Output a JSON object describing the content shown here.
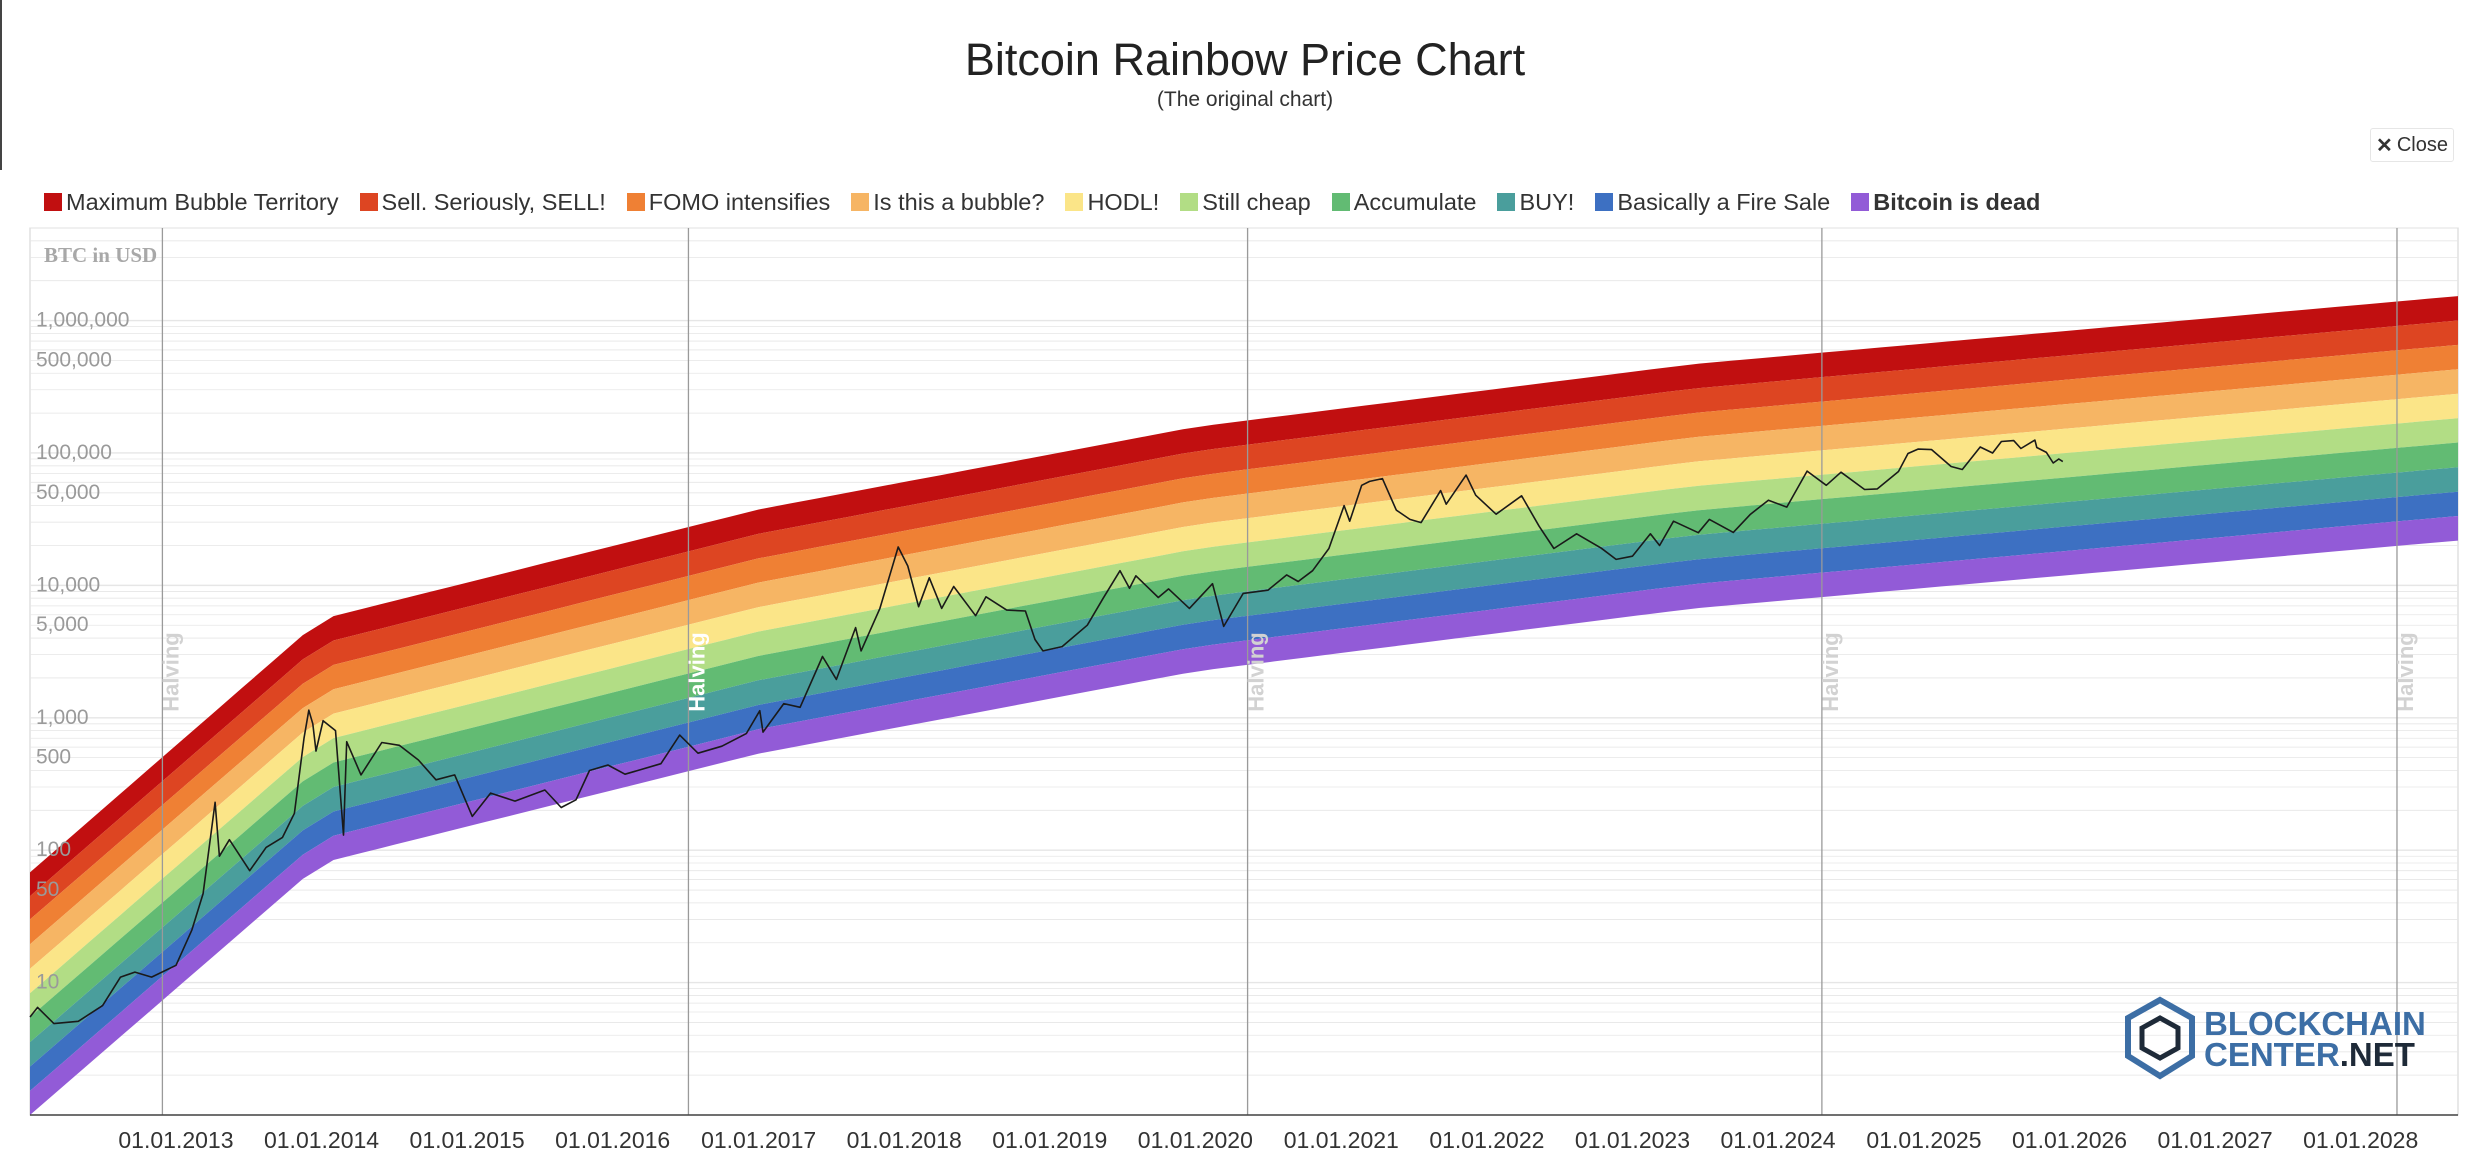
{
  "header": {
    "title": "Bitcoin Rainbow Price Chart",
    "subtitle": "(The original chart)",
    "close_label": "Close",
    "close_icon": "close-icon"
  },
  "colors": {
    "price_line": "#1a1a1a",
    "grid": "#e6e6e6",
    "halving_line": "#9a9a9a",
    "halving_label": "#d2d2d2",
    "axis_label": "#9a9a9a",
    "logo_blue": "#3c6ea5",
    "logo_dark": "#1e2a38"
  },
  "legend": [
    {
      "label": "Maximum Bubble Territory",
      "color": "#c10f10",
      "bold": false
    },
    {
      "label": "Sell. Seriously, SELL!",
      "color": "#dd4522",
      "bold": false
    },
    {
      "label": "FOMO intensifies",
      "color": "#ef8034",
      "bold": false
    },
    {
      "label": "Is this a bubble?",
      "color": "#f6b564",
      "bold": false
    },
    {
      "label": "HODL!",
      "color": "#fbe588",
      "bold": false
    },
    {
      "label": "Still cheap",
      "color": "#b2dd85",
      "bold": false
    },
    {
      "label": "Accumulate",
      "color": "#62bb73",
      "bold": false
    },
    {
      "label": "BUY!",
      "color": "#4a9e9c",
      "bold": false
    },
    {
      "label": "Basically a Fire Sale",
      "color": "#3d70c2",
      "bold": false
    },
    {
      "label": "Bitcoin is dead",
      "color": "#925bd7",
      "bold": true
    }
  ],
  "chart_data": {
    "type": "area",
    "title": "Bitcoin Rainbow Price Chart",
    "subtitle": "(The original chart)",
    "ylabel": "BTC in USD",
    "yscale": "log",
    "ylim": [
      1,
      5000000
    ],
    "xlim": [
      "2012-01-01",
      "2028-09-01"
    ],
    "x_ticks": [
      "01.01.2013",
      "01.01.2014",
      "01.01.2015",
      "01.01.2016",
      "01.01.2017",
      "01.01.2018",
      "01.01.2019",
      "01.01.2020",
      "01.01.2021",
      "01.01.2022",
      "01.01.2023",
      "01.01.2024",
      "01.01.2025",
      "01.01.2026",
      "01.01.2027",
      "01.01.2028"
    ],
    "y_ticks": [
      {
        "value": 1000000,
        "label": "1,000,000"
      },
      {
        "value": 500000,
        "label": "500,000"
      },
      {
        "value": 100000,
        "label": "100,000"
      },
      {
        "value": 50000,
        "label": "50,000"
      },
      {
        "value": 10000,
        "label": "10,000"
      },
      {
        "value": 5000,
        "label": "5,000"
      },
      {
        "value": 1000,
        "label": "1,000"
      },
      {
        "value": 500,
        "label": "500"
      },
      {
        "value": 100,
        "label": "100"
      },
      {
        "value": 50,
        "label": "50"
      },
      {
        "value": 10,
        "label": "10"
      }
    ],
    "halvings": [
      {
        "date": "2012-11-28",
        "label": "Halving"
      },
      {
        "date": "2016-07-09",
        "label": "Halving",
        "highlight": true
      },
      {
        "date": "2020-05-11",
        "label": "Halving"
      },
      {
        "date": "2024-04-20",
        "label": "Halving"
      },
      {
        "date": "2028-04-01",
        "label": "Halving"
      }
    ],
    "bands": [
      {
        "name": "Maximum Bubble Territory",
        "lower": [
          45,
          3640,
          24500,
          103000,
          306000,
          1000000
        ]
      },
      {
        "name": "Sell. Seriously, SELL!",
        "lower": [
          30,
          2380,
          16000,
          67000,
          200000,
          655000
        ]
      },
      {
        "name": "FOMO intensifies",
        "lower": [
          19.5,
          1560,
          10500,
          44000,
          131000,
          428000
        ]
      },
      {
        "name": "Is this a bubble?",
        "lower": [
          12.7,
          1020,
          6850,
          28700,
          85600,
          280000
        ]
      },
      {
        "name": "HODL!",
        "lower": [
          8.3,
          666,
          4480,
          18800,
          56000,
          183000
        ]
      },
      {
        "name": "Still cheap",
        "lower": [
          5.5,
          436,
          2930,
          12300,
          36600,
          120000
        ]
      },
      {
        "name": "Accumulate",
        "lower": [
          3.55,
          285,
          1920,
          8030,
          23900,
          78000
        ]
      },
      {
        "name": "BUY!",
        "lower": [
          2.32,
          186,
          1250,
          5250,
          15600,
          51000
        ]
      },
      {
        "name": "Basically a Fire Sale",
        "lower": [
          1.52,
          122,
          820,
          3430,
          10200,
          33400
        ]
      },
      {
        "name": "Bitcoin is dead",
        "lower": [
          1.0,
          80,
          536,
          2240,
          6680,
          21800
        ]
      }
    ],
    "band_x": [
      "2012-01-01",
      "2014-01-01",
      "2017-01-01",
      "2020-01-01",
      "2023-06-01",
      "2028-09-01"
    ],
    "band_top": [
      68,
      5560,
      37400,
      157000,
      468000,
      1530000
    ],
    "price": [
      {
        "x": "2012-01-01",
        "y": 5.5
      },
      {
        "x": "2012-01-20",
        "y": 6.5
      },
      {
        "x": "2012-03-01",
        "y": 4.9
      },
      {
        "x": "2012-05-01",
        "y": 5.1
      },
      {
        "x": "2012-07-01",
        "y": 6.7
      },
      {
        "x": "2012-08-15",
        "y": 11
      },
      {
        "x": "2012-09-20",
        "y": 12
      },
      {
        "x": "2012-11-01",
        "y": 11
      },
      {
        "x": "2013-01-01",
        "y": 13.5
      },
      {
        "x": "2013-02-10",
        "y": 25
      },
      {
        "x": "2013-03-10",
        "y": 47
      },
      {
        "x": "2013-04-09",
        "y": 230
      },
      {
        "x": "2013-04-20",
        "y": 90
      },
      {
        "x": "2013-05-15",
        "y": 120
      },
      {
        "x": "2013-07-05",
        "y": 70
      },
      {
        "x": "2013-08-15",
        "y": 105
      },
      {
        "x": "2013-09-25",
        "y": 125
      },
      {
        "x": "2013-10-25",
        "y": 190
      },
      {
        "x": "2013-11-18",
        "y": 700
      },
      {
        "x": "2013-11-30",
        "y": 1140
      },
      {
        "x": "2013-12-10",
        "y": 900
      },
      {
        "x": "2013-12-18",
        "y": 560
      },
      {
        "x": "2014-01-05",
        "y": 950
      },
      {
        "x": "2014-02-05",
        "y": 800
      },
      {
        "x": "2014-02-25",
        "y": 130
      },
      {
        "x": "2014-03-05",
        "y": 660
      },
      {
        "x": "2014-04-10",
        "y": 370
      },
      {
        "x": "2014-06-01",
        "y": 650
      },
      {
        "x": "2014-07-15",
        "y": 620
      },
      {
        "x": "2014-09-01",
        "y": 480
      },
      {
        "x": "2014-10-15",
        "y": 340
      },
      {
        "x": "2014-12-01",
        "y": 370
      },
      {
        "x": "2015-01-14",
        "y": 180
      },
      {
        "x": "2015-03-01",
        "y": 270
      },
      {
        "x": "2015-05-01",
        "y": 235
      },
      {
        "x": "2015-07-15",
        "y": 285
      },
      {
        "x": "2015-08-25",
        "y": 210
      },
      {
        "x": "2015-10-01",
        "y": 240
      },
      {
        "x": "2015-11-04",
        "y": 400
      },
      {
        "x": "2015-12-20",
        "y": 440
      },
      {
        "x": "2016-02-01",
        "y": 375
      },
      {
        "x": "2016-05-01",
        "y": 450
      },
      {
        "x": "2016-06-17",
        "y": 740
      },
      {
        "x": "2016-08-02",
        "y": 540
      },
      {
        "x": "2016-10-01",
        "y": 610
      },
      {
        "x": "2016-12-01",
        "y": 760
      },
      {
        "x": "2017-01-04",
        "y": 1130
      },
      {
        "x": "2017-01-12",
        "y": 780
      },
      {
        "x": "2017-03-05",
        "y": 1280
      },
      {
        "x": "2017-04-15",
        "y": 1200
      },
      {
        "x": "2017-06-10",
        "y": 2900
      },
      {
        "x": "2017-07-15",
        "y": 1950
      },
      {
        "x": "2017-09-01",
        "y": 4800
      },
      {
        "x": "2017-09-15",
        "y": 3200
      },
      {
        "x": "2017-11-01",
        "y": 6700
      },
      {
        "x": "2017-12-17",
        "y": 19500
      },
      {
        "x": "2018-01-10",
        "y": 14000
      },
      {
        "x": "2018-02-06",
        "y": 6900
      },
      {
        "x": "2018-03-05",
        "y": 11400
      },
      {
        "x": "2018-04-05",
        "y": 6700
      },
      {
        "x": "2018-05-05",
        "y": 9800
      },
      {
        "x": "2018-06-29",
        "y": 5900
      },
      {
        "x": "2018-07-25",
        "y": 8200
      },
      {
        "x": "2018-09-15",
        "y": 6500
      },
      {
        "x": "2018-11-01",
        "y": 6400
      },
      {
        "x": "2018-11-25",
        "y": 3900
      },
      {
        "x": "2018-12-15",
        "y": 3200
      },
      {
        "x": "2019-02-01",
        "y": 3450
      },
      {
        "x": "2019-04-05",
        "y": 5000
      },
      {
        "x": "2019-05-15",
        "y": 8000
      },
      {
        "x": "2019-06-26",
        "y": 12900
      },
      {
        "x": "2019-07-20",
        "y": 9500
      },
      {
        "x": "2019-08-05",
        "y": 11800
      },
      {
        "x": "2019-09-30",
        "y": 8100
      },
      {
        "x": "2019-10-26",
        "y": 9400
      },
      {
        "x": "2019-12-17",
        "y": 6700
      },
      {
        "x": "2020-02-13",
        "y": 10300
      },
      {
        "x": "2020-03-12",
        "y": 4900
      },
      {
        "x": "2020-04-30",
        "y": 8700
      },
      {
        "x": "2020-07-01",
        "y": 9200
      },
      {
        "x": "2020-08-17",
        "y": 12000
      },
      {
        "x": "2020-09-15",
        "y": 10700
      },
      {
        "x": "2020-10-21",
        "y": 12900
      },
      {
        "x": "2020-12-01",
        "y": 19000
      },
      {
        "x": "2021-01-08",
        "y": 40000
      },
      {
        "x": "2021-01-22",
        "y": 30500
      },
      {
        "x": "2021-02-21",
        "y": 57000
      },
      {
        "x": "2021-03-13",
        "y": 61000
      },
      {
        "x": "2021-04-14",
        "y": 64000
      },
      {
        "x": "2021-05-19",
        "y": 37000
      },
      {
        "x": "2021-06-22",
        "y": 31500
      },
      {
        "x": "2021-07-20",
        "y": 29800
      },
      {
        "x": "2021-09-07",
        "y": 52000
      },
      {
        "x": "2021-09-21",
        "y": 41000
      },
      {
        "x": "2021-11-10",
        "y": 68000
      },
      {
        "x": "2021-12-04",
        "y": 48000
      },
      {
        "x": "2022-01-24",
        "y": 34500
      },
      {
        "x": "2022-03-29",
        "y": 47500
      },
      {
        "x": "2022-05-12",
        "y": 28000
      },
      {
        "x": "2022-06-18",
        "y": 19000
      },
      {
        "x": "2022-08-14",
        "y": 24500
      },
      {
        "x": "2022-10-15",
        "y": 19100
      },
      {
        "x": "2022-11-21",
        "y": 15700
      },
      {
        "x": "2023-01-01",
        "y": 16600
      },
      {
        "x": "2023-02-15",
        "y": 24500
      },
      {
        "x": "2023-03-10",
        "y": 20000
      },
      {
        "x": "2023-04-14",
        "y": 30500
      },
      {
        "x": "2023-06-15",
        "y": 25000
      },
      {
        "x": "2023-07-13",
        "y": 31500
      },
      {
        "x": "2023-09-11",
        "y": 25100
      },
      {
        "x": "2023-10-24",
        "y": 34500
      },
      {
        "x": "2023-12-08",
        "y": 44000
      },
      {
        "x": "2024-01-23",
        "y": 39000
      },
      {
        "x": "2024-03-14",
        "y": 73000
      },
      {
        "x": "2024-05-01",
        "y": 57000
      },
      {
        "x": "2024-06-07",
        "y": 71500
      },
      {
        "x": "2024-08-05",
        "y": 53000
      },
      {
        "x": "2024-09-06",
        "y": 53500
      },
      {
        "x": "2024-10-29",
        "y": 72500
      },
      {
        "x": "2024-11-22",
        "y": 99000
      },
      {
        "x": "2024-12-17",
        "y": 107000
      },
      {
        "x": "2025-01-20",
        "y": 106000
      },
      {
        "x": "2025-03-10",
        "y": 79000
      },
      {
        "x": "2025-04-07",
        "y": 75000
      },
      {
        "x": "2025-05-22",
        "y": 111000
      },
      {
        "x": "2025-06-22",
        "y": 100000
      },
      {
        "x": "2025-07-14",
        "y": 122000
      },
      {
        "x": "2025-08-14",
        "y": 124000
      },
      {
        "x": "2025-09-01",
        "y": 108000
      },
      {
        "x": "2025-10-06",
        "y": 125000
      },
      {
        "x": "2025-10-11",
        "y": 110000
      },
      {
        "x": "2025-11-04",
        "y": 101000
      },
      {
        "x": "2025-11-21",
        "y": 84000
      },
      {
        "x": "2025-12-05",
        "y": 90000
      },
      {
        "x": "2025-12-15",
        "y": 86000
      }
    ]
  },
  "logo": {
    "line1": "BLOCKCHAIN",
    "line2_a": "CENTER",
    "line2_b": ".NET"
  }
}
